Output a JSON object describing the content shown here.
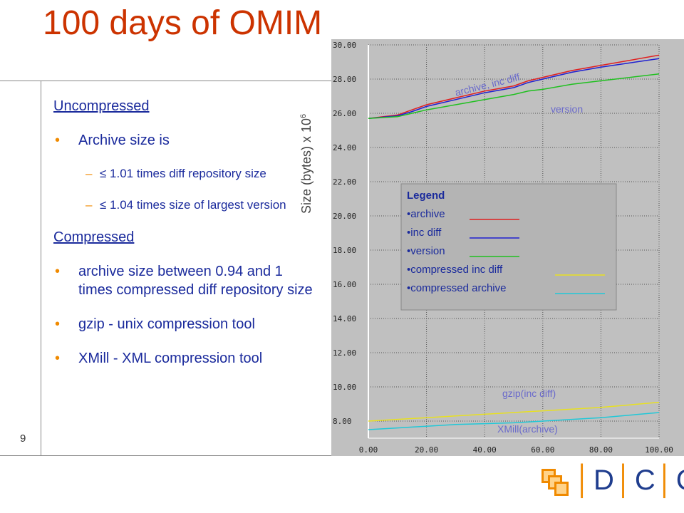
{
  "slide": {
    "title": "100 days of OMIM",
    "page_number": "9",
    "bullets": {
      "uncompressed_heading": "Uncompressed",
      "archive_size_is": "Archive size is",
      "sub1": "≤ 1.01 times diff repository size",
      "sub2": "≤ 1.04 times size of largest version",
      "compressed_heading": "Compressed",
      "c1": "archive size  between 0.94 and 1 times compressed diff repository size",
      "c2": "gzip - unix compression tool",
      "c3": "XMill - XML compression tool"
    },
    "bullet_glyph": "•",
    "dash_glyph": "–",
    "logo": {
      "left": "│",
      "d": "D",
      "c1": "C",
      "c2": "C",
      "bar": "│"
    }
  },
  "chart_data": {
    "type": "line",
    "ylabel_text": "Size (bytes) x 10",
    "ylabel_exp": "6",
    "xlim": [
      0,
      100
    ],
    "ylim": [
      7,
      30
    ],
    "xticks": [
      "0.00",
      "20.00",
      "40.00",
      "60.00",
      "80.00",
      "100.00"
    ],
    "yticks": [
      "8.00",
      "10.00",
      "12.00",
      "14.00",
      "16.00",
      "18.00",
      "20.00",
      "22.00",
      "24.00",
      "26.00",
      "28.00",
      "30.00"
    ],
    "grid": true,
    "legend": {
      "title": "Legend",
      "entries": [
        "•archive",
        "•inc diff",
        "•version",
        "•compressed inc diff",
        "•compressed archive"
      ],
      "placement": "center"
    },
    "annotations": [
      "archive, inc diff",
      "version",
      "gzip(inc diff)",
      "XMill(archive)"
    ],
    "x": [
      0,
      10,
      15,
      20,
      30,
      40,
      50,
      55,
      60,
      70,
      80,
      90,
      100
    ],
    "series": [
      {
        "name": "archive",
        "color": "#e02020",
        "values": [
          25.7,
          25.9,
          26.2,
          26.5,
          26.9,
          27.3,
          27.6,
          27.9,
          28.1,
          28.5,
          28.8,
          29.1,
          29.4
        ]
      },
      {
        "name": "inc diff",
        "color": "#2020d0",
        "values": [
          25.7,
          25.85,
          26.1,
          26.4,
          26.8,
          27.2,
          27.5,
          27.8,
          28.0,
          28.4,
          28.7,
          28.95,
          29.2
        ]
      },
      {
        "name": "version",
        "color": "#20c020",
        "values": [
          25.7,
          25.8,
          26.0,
          26.2,
          26.5,
          26.8,
          27.1,
          27.3,
          27.4,
          27.7,
          27.9,
          28.1,
          28.3
        ]
      },
      {
        "name": "compressed inc diff",
        "color": "#e8e020",
        "values": [
          8.0,
          8.1,
          8.15,
          8.2,
          8.3,
          8.4,
          8.5,
          8.55,
          8.6,
          8.7,
          8.8,
          8.95,
          9.1
        ]
      },
      {
        "name": "compressed archive",
        "color": "#20c8d8",
        "values": [
          7.5,
          7.6,
          7.65,
          7.7,
          7.8,
          7.85,
          7.9,
          7.95,
          8.0,
          8.1,
          8.2,
          8.35,
          8.5
        ]
      }
    ]
  }
}
